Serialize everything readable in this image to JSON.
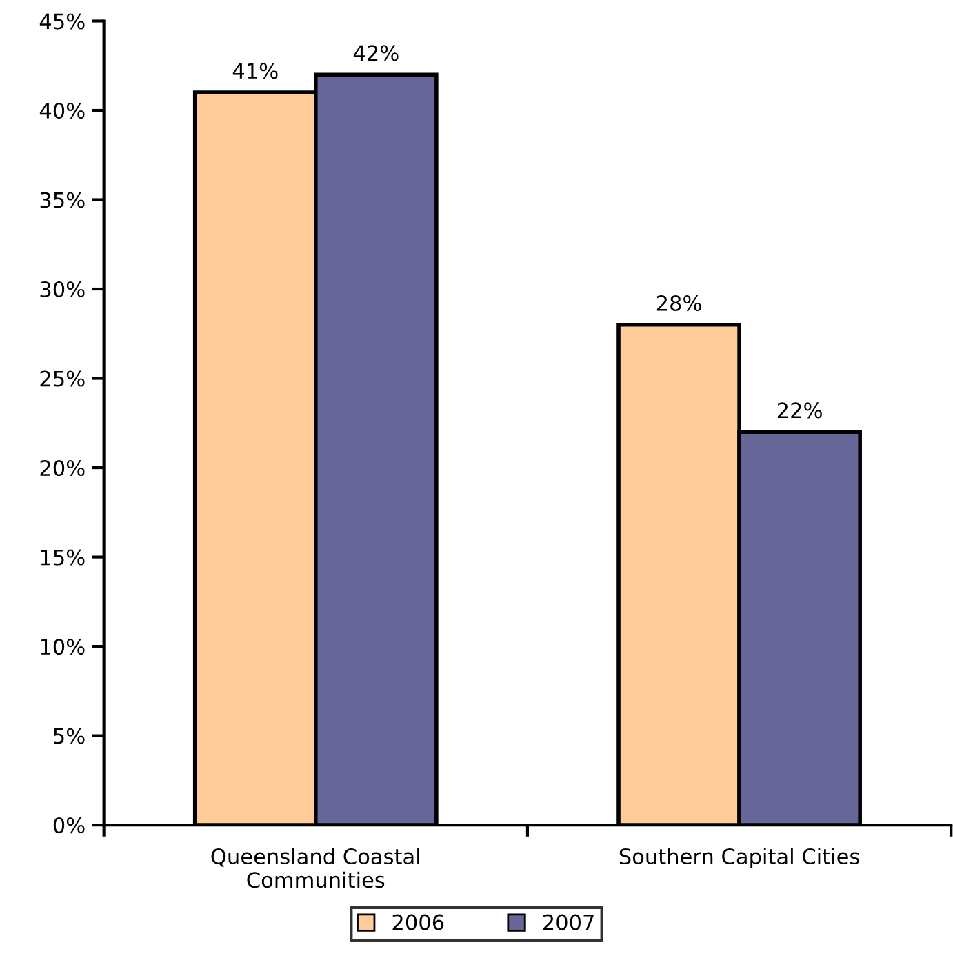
{
  "chart_data": {
    "type": "bar",
    "categories": [
      "Queensland Coastal\nCommunities",
      "Southern Capital Cities"
    ],
    "series": [
      {
        "name": "2006",
        "color": "#ffcc99",
        "values": [
          41,
          28
        ],
        "value_labels": [
          "41%",
          "28%"
        ]
      },
      {
        "name": "2007",
        "color": "#666699",
        "values": [
          42,
          22
        ],
        "value_labels": [
          "42%",
          "22%"
        ]
      }
    ],
    "ylim": [
      0,
      45
    ],
    "yticks": [
      {
        "value": 0,
        "label": "0%"
      },
      {
        "value": 5,
        "label": "5%"
      },
      {
        "value": 10,
        "label": "10%"
      },
      {
        "value": 15,
        "label": "15%"
      },
      {
        "value": 20,
        "label": "20%"
      },
      {
        "value": 25,
        "label": "25%"
      },
      {
        "value": 30,
        "label": "30%"
      },
      {
        "value": 35,
        "label": "35%"
      },
      {
        "value": 40,
        "label": "40%"
      },
      {
        "value": 45,
        "label": "45%"
      }
    ],
    "grid": false,
    "legend": "bottom"
  }
}
